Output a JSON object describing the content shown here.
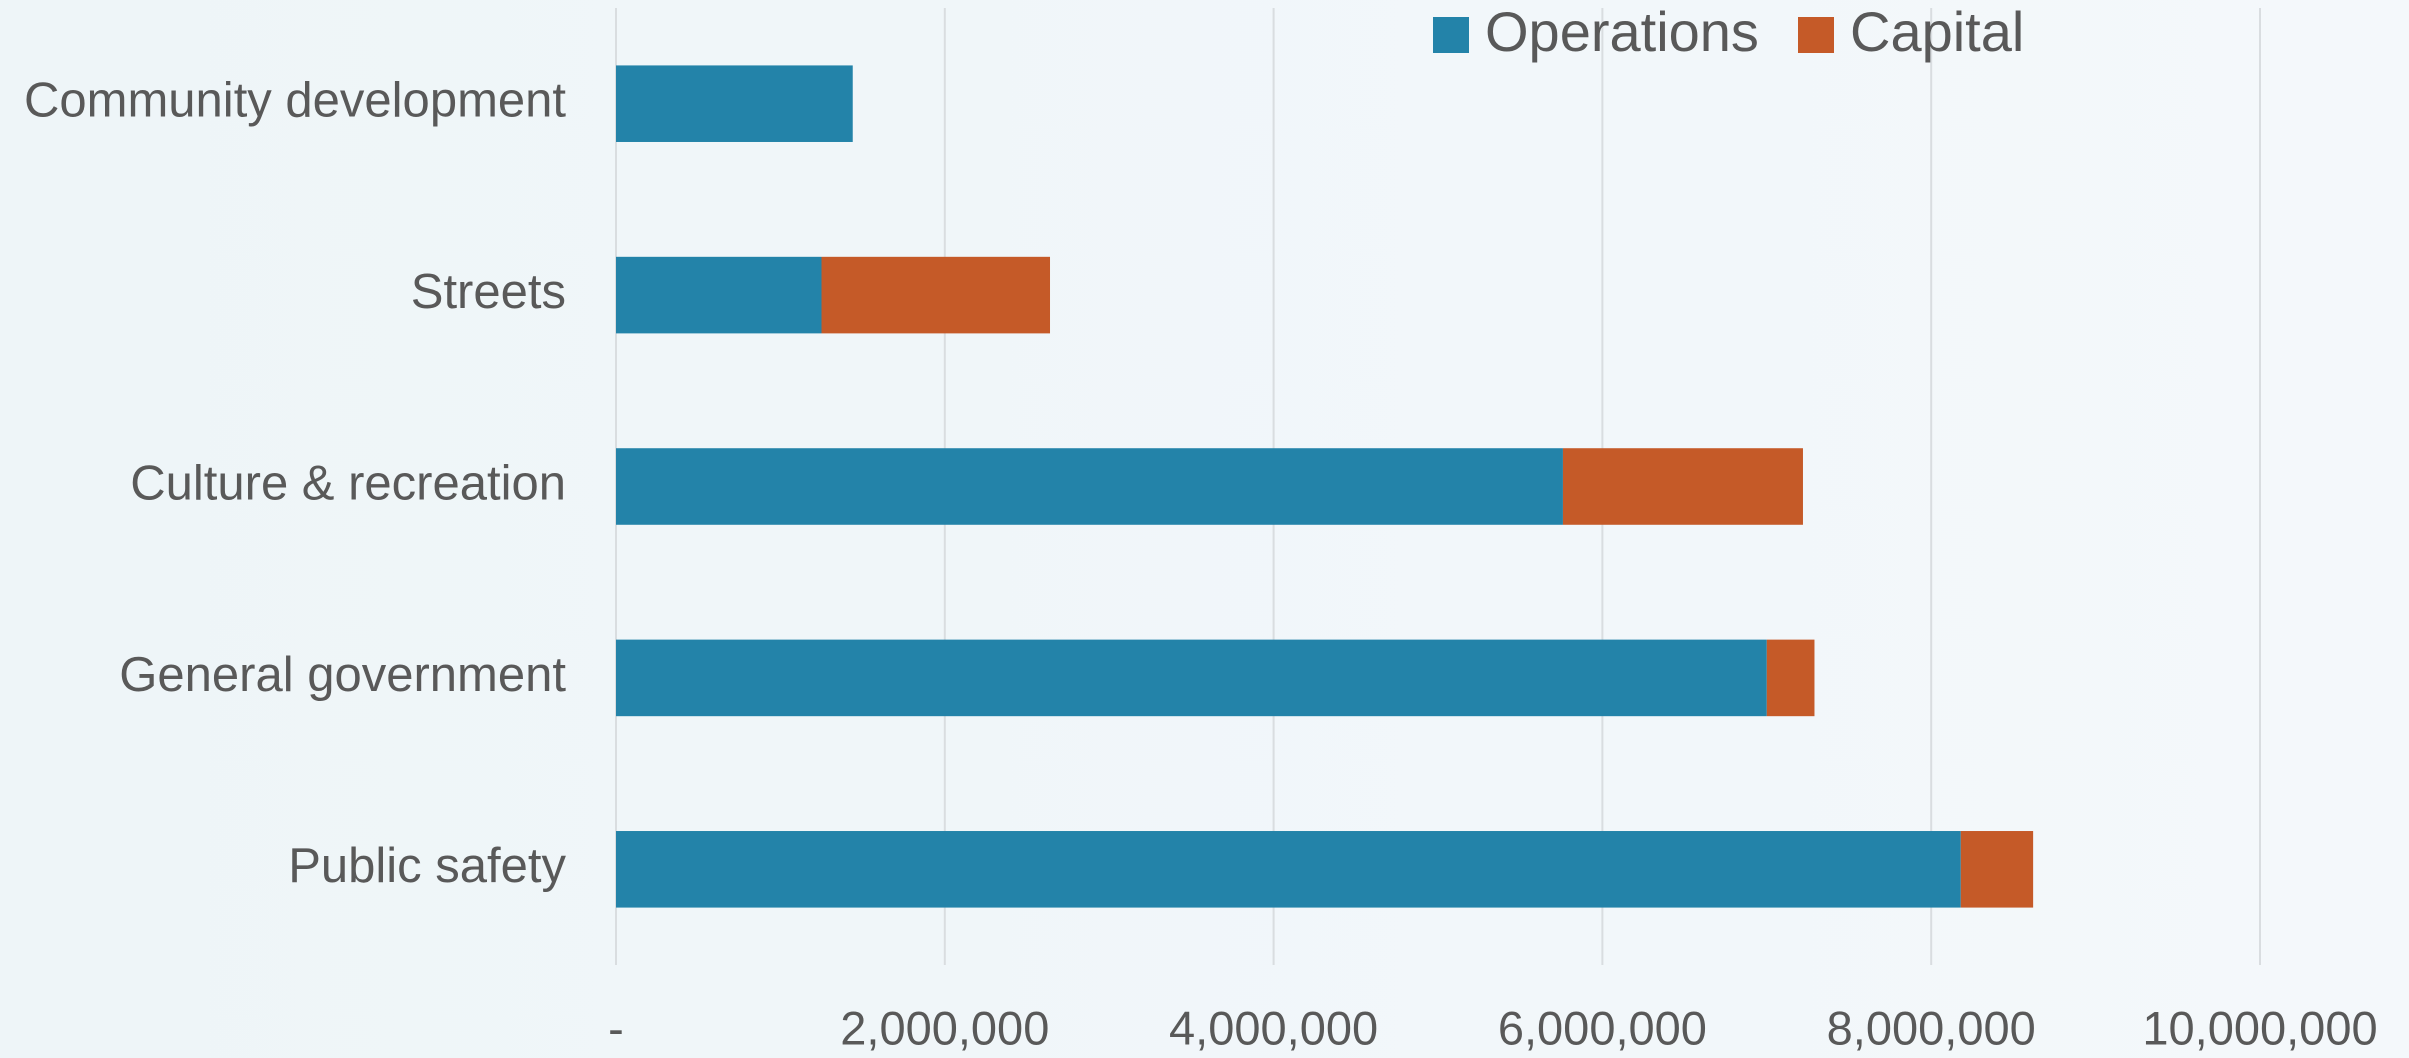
{
  "chart_data": {
    "type": "stacked_bar_horizontal",
    "categories": [
      "Community development",
      "Streets",
      "Culture & recreation",
      "General government",
      "Public safety"
    ],
    "series": [
      {
        "name": "Operations",
        "color": "#2383a9",
        "values": [
          1440000,
          1250000,
          5760000,
          7000000,
          8180000
        ]
      },
      {
        "name": "Capital",
        "color": "#c55a28",
        "values": [
          0,
          1390000,
          1460000,
          290000,
          440000
        ]
      }
    ],
    "xlim": [
      0,
      10000000
    ],
    "xticks": [
      {
        "value": 0,
        "label": "-"
      },
      {
        "value": 2000000,
        "label": "2,000,000"
      },
      {
        "value": 4000000,
        "label": "4,000,000"
      },
      {
        "value": 6000000,
        "label": "6,000,000"
      },
      {
        "value": 8000000,
        "label": "8,000,000"
      },
      {
        "value": 10000000,
        "label": "10,000,000"
      }
    ],
    "grid": true,
    "legend": "top"
  }
}
